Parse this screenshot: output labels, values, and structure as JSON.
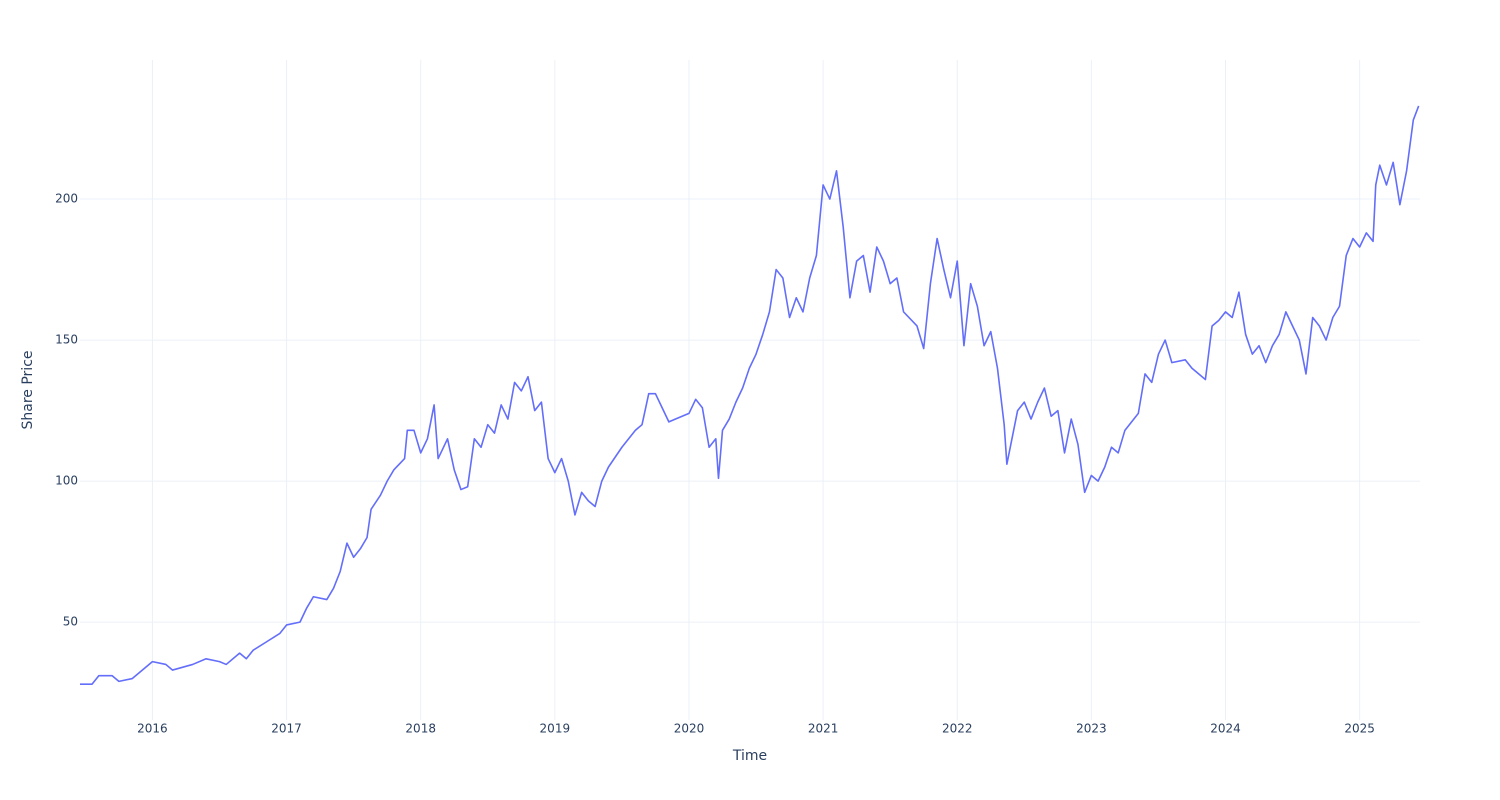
{
  "chart_data": {
    "type": "line",
    "x_label": "Time",
    "y_label": "Share Price",
    "color": "#636efa",
    "grid": true,
    "xlim": [
      2015.46,
      2025.45
    ],
    "xticks": [
      2016,
      2017,
      2018,
      2019,
      2020,
      2021,
      2022,
      2023,
      2024,
      2025
    ],
    "ylim": [
      15.3,
      249.3
    ],
    "yticks": [
      50,
      100,
      150,
      200
    ],
    "x": [
      2015.46,
      2015.55,
      2015.6,
      2015.7,
      2015.75,
      2015.85,
      2015.95,
      2016.0,
      2016.1,
      2016.15,
      2016.3,
      2016.4,
      2016.5,
      2016.55,
      2016.65,
      2016.7,
      2016.75,
      2016.85,
      2016.95,
      2017.0,
      2017.1,
      2017.15,
      2017.2,
      2017.3,
      2017.35,
      2017.4,
      2017.45,
      2017.5,
      2017.55,
      2017.6,
      2017.63,
      2017.7,
      2017.75,
      2017.8,
      2017.88,
      2017.9,
      2017.95,
      2018.0,
      2018.05,
      2018.1,
      2018.13,
      2018.2,
      2018.25,
      2018.3,
      2018.35,
      2018.4,
      2018.45,
      2018.5,
      2018.55,
      2018.6,
      2018.65,
      2018.7,
      2018.75,
      2018.8,
      2018.85,
      2018.9,
      2018.95,
      2019.0,
      2019.05,
      2019.1,
      2019.15,
      2019.2,
      2019.25,
      2019.3,
      2019.35,
      2019.4,
      2019.5,
      2019.6,
      2019.65,
      2019.7,
      2019.75,
      2019.8,
      2019.85,
      2019.9,
      2020.0,
      2020.05,
      2020.1,
      2020.15,
      2020.2,
      2020.22,
      2020.25,
      2020.3,
      2020.35,
      2020.4,
      2020.45,
      2020.5,
      2020.55,
      2020.6,
      2020.65,
      2020.7,
      2020.75,
      2020.8,
      2020.85,
      2020.9,
      2020.95,
      2021.0,
      2021.05,
      2021.1,
      2021.15,
      2021.2,
      2021.25,
      2021.3,
      2021.35,
      2021.4,
      2021.45,
      2021.5,
      2021.55,
      2021.6,
      2021.7,
      2021.75,
      2021.8,
      2021.85,
      2021.9,
      2021.95,
      2022.0,
      2022.05,
      2022.1,
      2022.15,
      2022.2,
      2022.25,
      2022.3,
      2022.35,
      2022.37,
      2022.45,
      2022.5,
      2022.55,
      2022.6,
      2022.65,
      2022.7,
      2022.75,
      2022.8,
      2022.85,
      2022.9,
      2022.95,
      2023.0,
      2023.05,
      2023.1,
      2023.15,
      2023.2,
      2023.25,
      2023.35,
      2023.4,
      2023.45,
      2023.5,
      2023.55,
      2023.6,
      2023.7,
      2023.75,
      2023.8,
      2023.85,
      2023.9,
      2023.95,
      2024.0,
      2024.05,
      2024.1,
      2024.15,
      2024.2,
      2024.25,
      2024.3,
      2024.35,
      2024.4,
      2024.45,
      2024.5,
      2024.55,
      2024.6,
      2024.65,
      2024.7,
      2024.75,
      2024.8,
      2024.85,
      2024.9,
      2024.95,
      2025.0,
      2025.05,
      2025.1,
      2025.12,
      2025.15,
      2025.2,
      2025.25,
      2025.3,
      2025.35,
      2025.4,
      2025.44
    ],
    "values": [
      28,
      28,
      31,
      31,
      29,
      30,
      34,
      36,
      35,
      33,
      35,
      37,
      36,
      35,
      39,
      37,
      40,
      43,
      46,
      49,
      50,
      55,
      59,
      58,
      62,
      68,
      78,
      73,
      76,
      80,
      90,
      95,
      100,
      104,
      108,
      118,
      118,
      110,
      115,
      127,
      108,
      115,
      104,
      97,
      98,
      115,
      112,
      120,
      117,
      127,
      122,
      135,
      132,
      137,
      125,
      128,
      108,
      103,
      108,
      100,
      88,
      96,
      93,
      91,
      100,
      105,
      112,
      118,
      120,
      131,
      131,
      126,
      121,
      122,
      124,
      129,
      126,
      112,
      115,
      101,
      118,
      122,
      128,
      133,
      140,
      145,
      152,
      160,
      175,
      172,
      158,
      165,
      160,
      172,
      180,
      205,
      200,
      210,
      190,
      165,
      178,
      180,
      167,
      183,
      178,
      170,
      172,
      160,
      155,
      147,
      170,
      186,
      175,
      165,
      178,
      148,
      170,
      162,
      148,
      153,
      140,
      120,
      106,
      125,
      128,
      122,
      128,
      133,
      123,
      125,
      110,
      122,
      113,
      96,
      102,
      100,
      105,
      112,
      110,
      118,
      124,
      138,
      135,
      145,
      150,
      142,
      143,
      140,
      138,
      136,
      155,
      157,
      160,
      158,
      167,
      152,
      145,
      148,
      142,
      148,
      152,
      160,
      155,
      150,
      138,
      158,
      155,
      150,
      158,
      162,
      180,
      186,
      183,
      188,
      185,
      205,
      212,
      205,
      213,
      198,
      210,
      228,
      233
    ]
  }
}
